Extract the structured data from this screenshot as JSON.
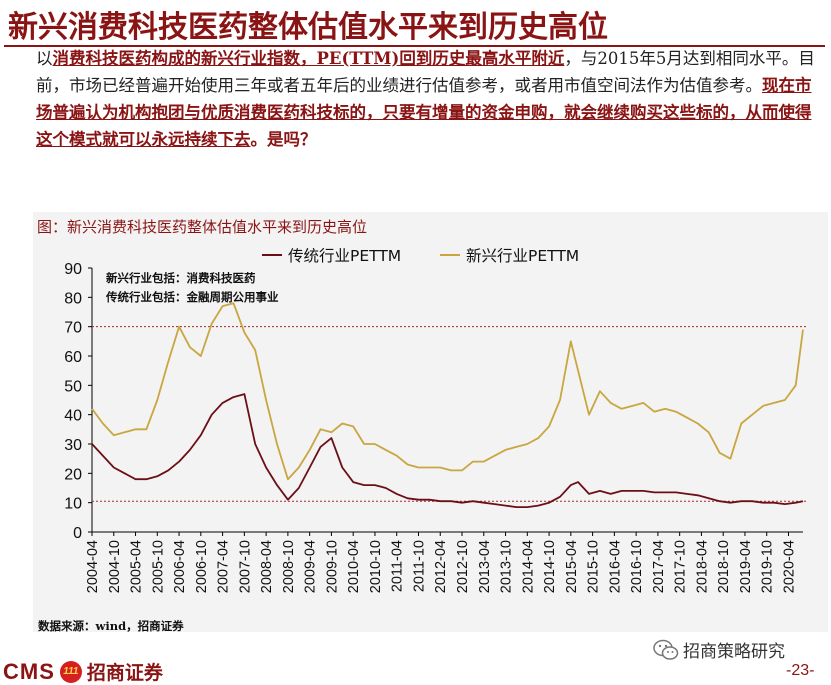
{
  "page": {
    "title": "新兴消费科技医药整体估值水平来到历史高位",
    "intro": {
      "p1_prefix": "以",
      "p1_hl": "消费科技医药构成的新兴行业指数，PE(TTM)回到历史最高水平附近",
      "p1_suffix": "，与2015年5月达到相同水平。目前，市场已经普遍开始使用三年或者五年后的业绩进行估值参考，或者用市值空间法作为估值参考。",
      "p2_hl": "现在市场普遍认为机构抱团与优质消费医药科技标的，只要有增量的资金申购，就会继续购买这些标的，从而使得这个模式就可以永远持续下去",
      "p2_suffix": "。是吗？"
    },
    "source": "数据来源：wind，招商证券",
    "footer": {
      "logo_text": "CMS",
      "badge_text": "111",
      "brand": "招商证券",
      "wechat": "招商策略研究",
      "page_number": "-23-"
    }
  },
  "colors": {
    "traditional": "#6b0f16",
    "emerging": "#c9a640",
    "accent": "#8a1414",
    "refline": "#a52a2a"
  },
  "chart_data": {
    "type": "line",
    "title": "图：新兴消费科技医药整体估值水平来到历史高位",
    "notes": [
      "新兴行业包括：消费科技医药",
      "传统行业包括：金融周期公用事业"
    ],
    "xlabel": "",
    "ylabel": "",
    "ylim": [
      0,
      90
    ],
    "yticks": [
      0,
      10,
      20,
      30,
      40,
      50,
      60,
      70,
      80,
      90
    ],
    "xticks": [
      "2004-04",
      "2004-10",
      "2005-04",
      "2005-10",
      "2006-04",
      "2006-10",
      "2007-04",
      "2007-10",
      "2008-04",
      "2008-10",
      "2009-04",
      "2009-10",
      "2010-04",
      "2010-10",
      "2011-04",
      "2011-10",
      "2012-04",
      "2012-10",
      "2013-04",
      "2013-10",
      "2014-04",
      "2014-10",
      "2015-04",
      "2015-10",
      "2016-04",
      "2016-10",
      "2017-04",
      "2017-10",
      "2018-04",
      "2018-10",
      "2019-04",
      "2019-10",
      "2020-04"
    ],
    "reference_lines": [
      70,
      10.5
    ],
    "grid": false,
    "legend": "top",
    "x": [
      "2004-04",
      "2004-07",
      "2004-10",
      "2005-01",
      "2005-04",
      "2005-07",
      "2005-10",
      "2006-01",
      "2006-04",
      "2006-07",
      "2006-10",
      "2007-01",
      "2007-04",
      "2007-07",
      "2007-10",
      "2008-01",
      "2008-04",
      "2008-07",
      "2008-10",
      "2009-01",
      "2009-04",
      "2009-07",
      "2009-10",
      "2010-01",
      "2010-04",
      "2010-07",
      "2010-10",
      "2011-01",
      "2011-04",
      "2011-07",
      "2011-10",
      "2012-01",
      "2012-04",
      "2012-07",
      "2012-10",
      "2013-01",
      "2013-04",
      "2013-07",
      "2013-10",
      "2014-01",
      "2014-04",
      "2014-07",
      "2014-10",
      "2015-01",
      "2015-04",
      "2015-06",
      "2015-09",
      "2015-12",
      "2016-03",
      "2016-06",
      "2016-09",
      "2016-12",
      "2017-03",
      "2017-06",
      "2017-09",
      "2017-12",
      "2018-03",
      "2018-06",
      "2018-09",
      "2018-12",
      "2019-03",
      "2019-06",
      "2019-09",
      "2019-12",
      "2020-03",
      "2020-06",
      "2020-08"
    ],
    "series": [
      {
        "name": "传统行业PETTM",
        "values": [
          30,
          26,
          22,
          20,
          18,
          18,
          19,
          21,
          24,
          28,
          33,
          40,
          44,
          46,
          47,
          30,
          22,
          16,
          11,
          15,
          22,
          29,
          32,
          22,
          17,
          16,
          16,
          15,
          13,
          11.5,
          11,
          11,
          10.5,
          10.5,
          10,
          10.5,
          10,
          9.5,
          9,
          8.5,
          8.5,
          9,
          10,
          12,
          16,
          17,
          13,
          14,
          13,
          14,
          14,
          14,
          13.5,
          13.5,
          13.5,
          13,
          12.5,
          11.5,
          10.5,
          10,
          10.5,
          10.5,
          10,
          10,
          9.5,
          10,
          10.5
        ]
      },
      {
        "name": "新兴行业PETTM",
        "values": [
          42,
          37,
          33,
          34,
          35,
          35,
          45,
          58,
          70,
          63,
          60,
          71,
          77,
          78,
          68,
          62,
          45,
          30,
          18,
          22,
          28,
          35,
          34,
          37,
          36,
          30,
          30,
          28,
          26,
          23,
          22,
          22,
          22,
          21,
          21,
          24,
          24,
          26,
          28,
          29,
          30,
          32,
          36,
          45,
          65,
          55,
          40,
          48,
          44,
          42,
          43,
          44,
          41,
          42,
          41,
          39,
          37,
          34,
          27,
          25,
          37,
          40,
          43,
          44,
          45,
          50,
          69
        ]
      }
    ]
  }
}
